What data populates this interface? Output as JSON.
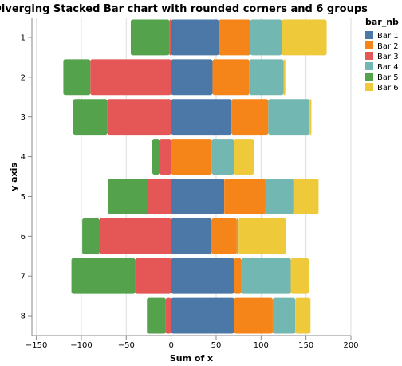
{
  "chart_data": {
    "type": "bar",
    "orientation": "horizontal",
    "stacking": "diverging",
    "title": "Diverging Stacked Bar chart with rounded corners and 6 groups",
    "xlabel": "Sum of x",
    "ylabel": "y axis",
    "xlim": [
      -155,
      200
    ],
    "x_ticks": [
      -150,
      -100,
      -50,
      0,
      50,
      100,
      150,
      200
    ],
    "grid": true,
    "legend": {
      "title": "bar_nb",
      "placement": "top-right"
    },
    "categories": [
      "1",
      "2",
      "3",
      "4",
      "5",
      "6",
      "7",
      "8"
    ],
    "series": [
      {
        "name": "Bar 1",
        "color": "#4c78a8",
        "values": [
          53,
          46,
          67,
          0,
          59,
          45,
          70,
          70
        ]
      },
      {
        "name": "Bar 2",
        "color": "#f58518",
        "values": [
          35,
          41,
          41,
          45,
          46,
          28,
          8,
          43
        ]
      },
      {
        "name": "Bar 3",
        "color": "#e45756",
        "values": [
          -2,
          -90,
          -71,
          -13,
          -26,
          -80,
          -40,
          -6
        ]
      },
      {
        "name": "Bar 4",
        "color": "#72b7b2",
        "values": [
          35,
          38,
          46,
          25,
          31,
          2,
          55,
          25
        ]
      },
      {
        "name": "Bar 5",
        "color": "#54a24b",
        "values": [
          -43,
          -30,
          -38,
          -8,
          -44,
          -19,
          -71,
          -21
        ]
      },
      {
        "name": "Bar 6",
        "color": "#eeca3b",
        "values": [
          50,
          2,
          2,
          22,
          28,
          53,
          20,
          17
        ]
      }
    ]
  }
}
